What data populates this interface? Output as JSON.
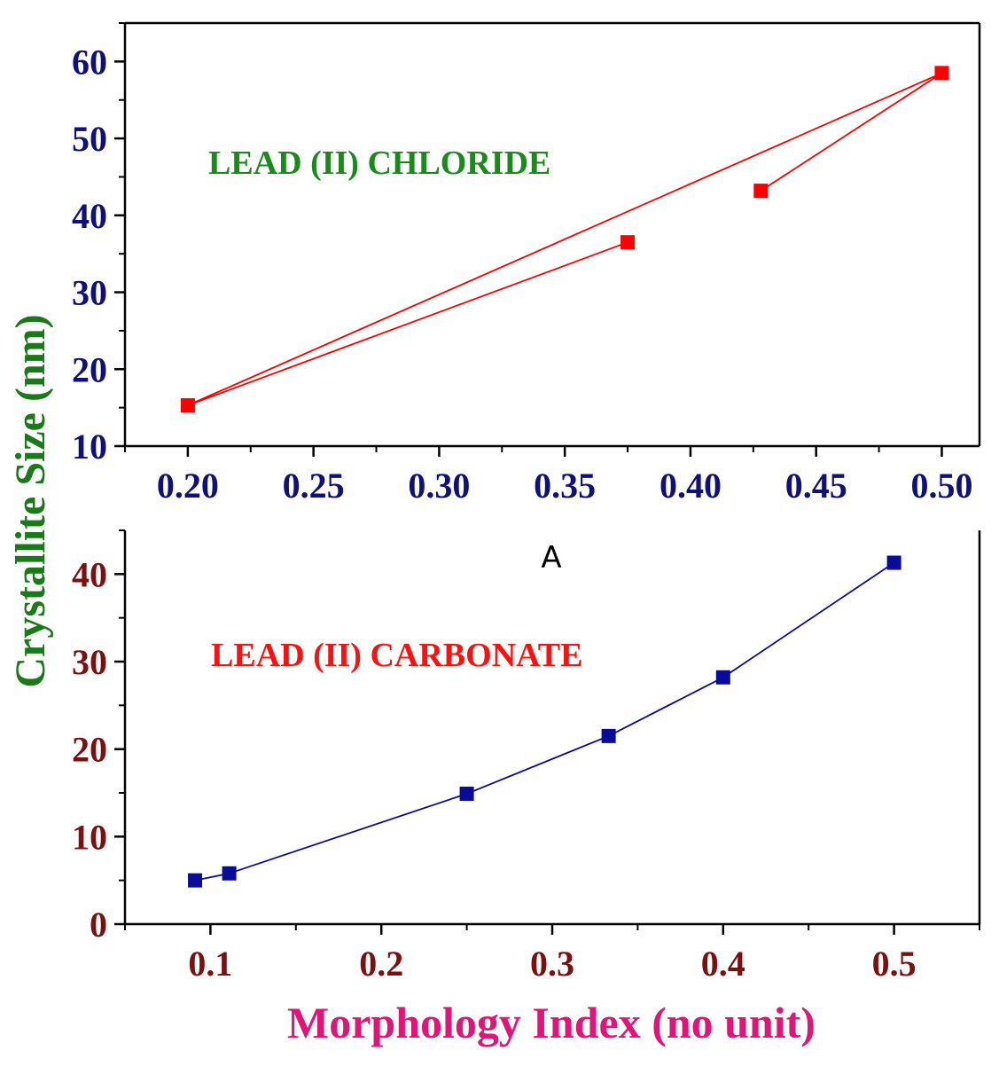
{
  "shared_ylabel": "Crystallite Size (nm)",
  "shared_xlabel": "Morphology Index (no unit)",
  "panel_label": "A",
  "colors": {
    "ylabel": "#1a7a1a",
    "xlabel": "#e0157a",
    "top_ticks": "#10107a",
    "top_title": "#1a8a1a",
    "top_series": "#ff0000",
    "bottom_ticks": "#7a1010",
    "bottom_title": "#ff1010",
    "bottom_series": "#0b0b9a",
    "axis": "#000000"
  },
  "chart_data": [
    {
      "type": "line",
      "title": "LEAD (II) CHLORIDE",
      "xlim": [
        0.175,
        0.515
      ],
      "ylim": [
        10,
        65
      ],
      "xticks": [
        0.2,
        0.25,
        0.3,
        0.35,
        0.4,
        0.45,
        0.5
      ],
      "xtick_labels": [
        "0.20",
        "0.25",
        "0.30",
        "0.35",
        "0.40",
        "0.45",
        "0.50"
      ],
      "yticks": [
        10,
        20,
        30,
        40,
        50,
        60
      ],
      "ytick_labels": [
        "10",
        "20",
        "30",
        "40",
        "50",
        "60"
      ],
      "marker": "square",
      "series": [
        {
          "x": [
            0.375,
            0.2,
            0.5,
            0.428
          ],
          "y": [
            36.5,
            15.3,
            58.5,
            43.2
          ]
        }
      ]
    },
    {
      "type": "line",
      "title": "LEAD (II) CARBONATE",
      "xlim": [
        0.05,
        0.55
      ],
      "ylim": [
        0,
        45
      ],
      "xticks": [
        0.1,
        0.2,
        0.3,
        0.4,
        0.5
      ],
      "xtick_labels": [
        "0.1",
        "0.2",
        "0.3",
        "0.4",
        "0.5"
      ],
      "yticks": [
        0,
        10,
        20,
        30,
        40
      ],
      "ytick_labels": [
        "0",
        "10",
        "20",
        "30",
        "40"
      ],
      "marker": "square",
      "series": [
        {
          "x": [
            0.091,
            0.111,
            0.25,
            0.333,
            0.4,
            0.5
          ],
          "y": [
            5.0,
            5.8,
            14.9,
            21.5,
            28.2,
            41.3
          ]
        }
      ]
    }
  ]
}
